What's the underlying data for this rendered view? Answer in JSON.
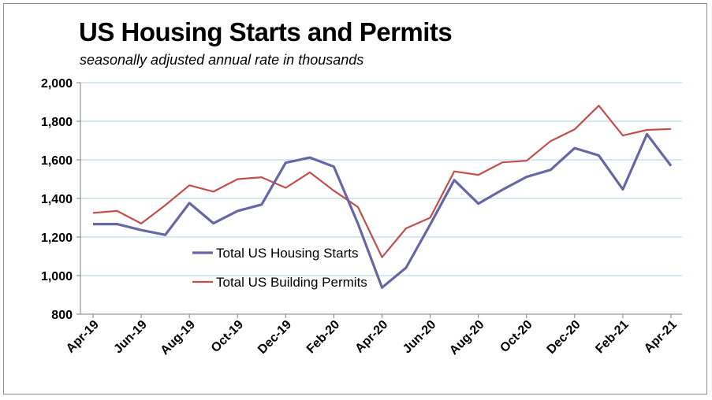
{
  "chart_data": {
    "type": "line",
    "title": "US Housing Starts and Permits",
    "subtitle": "seasonally adjusted annual rate in thousands",
    "xlabel": "",
    "ylabel": "",
    "ylim": [
      800,
      2000
    ],
    "yticks": [
      800,
      1000,
      1200,
      1400,
      1600,
      1800,
      2000
    ],
    "ytick_labels": [
      "800",
      "1,000",
      "1,200",
      "1,400",
      "1,600",
      "1,800",
      "2,000"
    ],
    "x": [
      "Apr-19",
      "May-19",
      "Jun-19",
      "Jul-19",
      "Aug-19",
      "Sep-19",
      "Oct-19",
      "Nov-19",
      "Dec-19",
      "Jan-20",
      "Feb-20",
      "Mar-20",
      "Apr-20",
      "May-20",
      "Jun-20",
      "Jul-20",
      "Aug-20",
      "Sep-20",
      "Oct-20",
      "Nov-20",
      "Dec-20",
      "Jan-21",
      "Feb-21",
      "Mar-21",
      "Apr-21"
    ],
    "x_tick_labels": [
      "Apr-19",
      "Jun-19",
      "Aug-19",
      "Oct-19",
      "Dec-19",
      "Feb-20",
      "Apr-20",
      "Jun-20",
      "Aug-20",
      "Oct-20",
      "Dec-20",
      "Feb-21",
      "Apr-21"
    ],
    "grid": true,
    "legend_position": "inside-lower-left",
    "series": [
      {
        "name": "Total US Housing Starts",
        "color": "#6767a3",
        "values": [
          1267,
          1267,
          1236,
          1211,
          1376,
          1271,
          1335,
          1368,
          1585,
          1612,
          1565,
          1269,
          938,
          1041,
          1265,
          1495,
          1373,
          1445,
          1512,
          1548,
          1661,
          1623,
          1447,
          1733,
          1569
        ]
      },
      {
        "name": "Total US Building Permits",
        "color": "#c0504d",
        "values": [
          1325,
          1335,
          1270,
          1365,
          1468,
          1435,
          1500,
          1510,
          1455,
          1535,
          1440,
          1355,
          1095,
          1245,
          1300,
          1540,
          1522,
          1587,
          1595,
          1697,
          1758,
          1881,
          1726,
          1755,
          1760
        ]
      }
    ]
  }
}
